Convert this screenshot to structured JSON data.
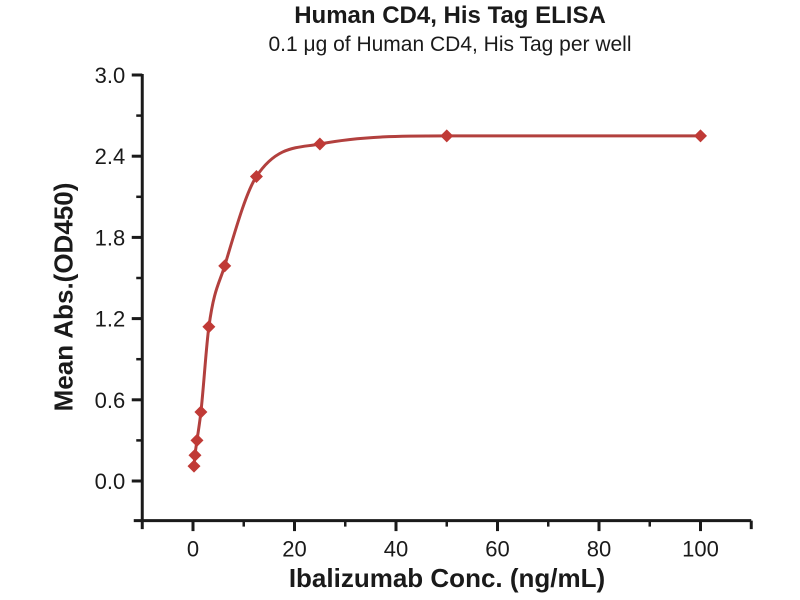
{
  "page": {
    "background": "#ffffff"
  },
  "chart_data": {
    "type": "scatter",
    "subtype": "line-with-diamond-markers",
    "title": "Human CD4, His Tag ELISA",
    "subtitle": "0.1 μg of Human CD4, His Tag per well",
    "xlabel": "Ibalizumab Conc. (ng/mL)",
    "ylabel": "Mean Abs.(OD450)",
    "x": [
      0.195,
      0.39,
      0.78,
      1.56,
      3.125,
      6.25,
      12.5,
      25,
      50,
      100
    ],
    "y": [
      0.11,
      0.19,
      0.3,
      0.51,
      1.14,
      1.59,
      2.25,
      2.49,
      2.55,
      2.55
    ],
    "xlim": [
      -10,
      110
    ],
    "ylim": [
      -0.3,
      3.0
    ],
    "x_major_ticks": [
      0,
      20,
      40,
      60,
      80,
      100
    ],
    "x_minor_ticks": [
      10,
      30,
      50,
      70,
      90
    ],
    "x_tick_labels": [
      "0",
      "20",
      "40",
      "60",
      "80",
      "100"
    ],
    "y_major_ticks": [
      0.0,
      0.6,
      1.2,
      1.8,
      2.4,
      3.0
    ],
    "y_minor_ticks": [
      0.3,
      0.9,
      1.5,
      2.1,
      2.7
    ],
    "y_tick_labels": [
      "0.0",
      "0.6",
      "1.2",
      "1.8",
      "2.4",
      "3.0"
    ],
    "grid": false,
    "legend": "none",
    "marker": "diamond",
    "line_color": "#B2403E",
    "marker_color": "#C03A36",
    "axis_color": "#1a1a1a"
  }
}
